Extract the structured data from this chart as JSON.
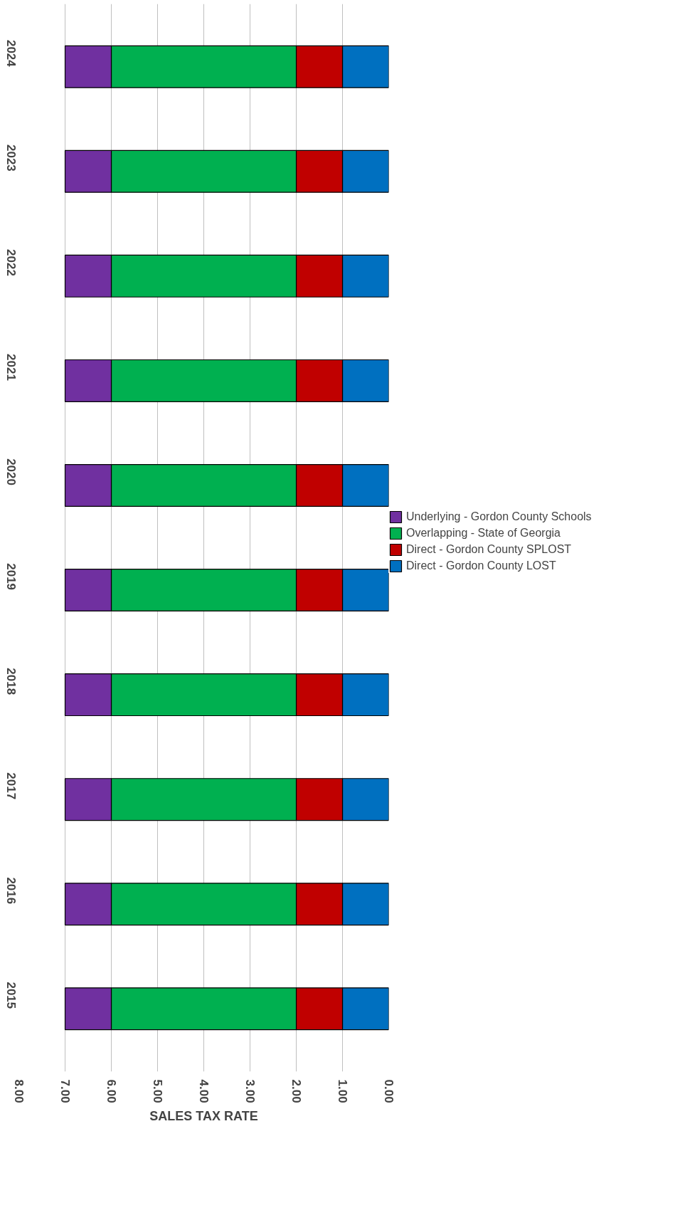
{
  "chart_data": {
    "type": "bar",
    "orientation": "horizontal",
    "stacked": true,
    "categories": [
      "2024",
      "2023",
      "2022",
      "2021",
      "2020",
      "2019",
      "2018",
      "2017",
      "2016",
      "2015"
    ],
    "series": [
      {
        "name": "Direct - Gordon County LOST",
        "color": "#0070c0",
        "values": [
          1,
          1,
          1,
          1,
          1,
          1,
          1,
          1,
          1,
          1
        ]
      },
      {
        "name": "Direct - Gordon County SPLOST",
        "color": "#c00000",
        "values": [
          1,
          1,
          1,
          1,
          1,
          1,
          1,
          1,
          1,
          1
        ]
      },
      {
        "name": "Overlapping - State of Georgia",
        "color": "#00b050",
        "values": [
          4,
          4,
          4,
          4,
          4,
          4,
          4,
          4,
          4,
          4
        ]
      },
      {
        "name": "Underlying - Gordon County Schools",
        "color": "#7030a0",
        "values": [
          1,
          1,
          1,
          1,
          1,
          1,
          1,
          1,
          1,
          1
        ]
      }
    ],
    "xlabel": "SALES TAX RATE",
    "xlim": [
      8,
      0
    ],
    "xticks": [
      {
        "value": 0,
        "label": "0.00"
      },
      {
        "value": 1,
        "label": "1.00"
      },
      {
        "value": 2,
        "label": "2.00"
      },
      {
        "value": 3,
        "label": "3.00"
      },
      {
        "value": 4,
        "label": "4.00"
      },
      {
        "value": 5,
        "label": "5.00"
      },
      {
        "value": 6,
        "label": "6.00"
      },
      {
        "value": 7,
        "label": "7.00"
      },
      {
        "value": 8,
        "label": "8.00"
      }
    ],
    "grid": "x",
    "legend": "right"
  }
}
